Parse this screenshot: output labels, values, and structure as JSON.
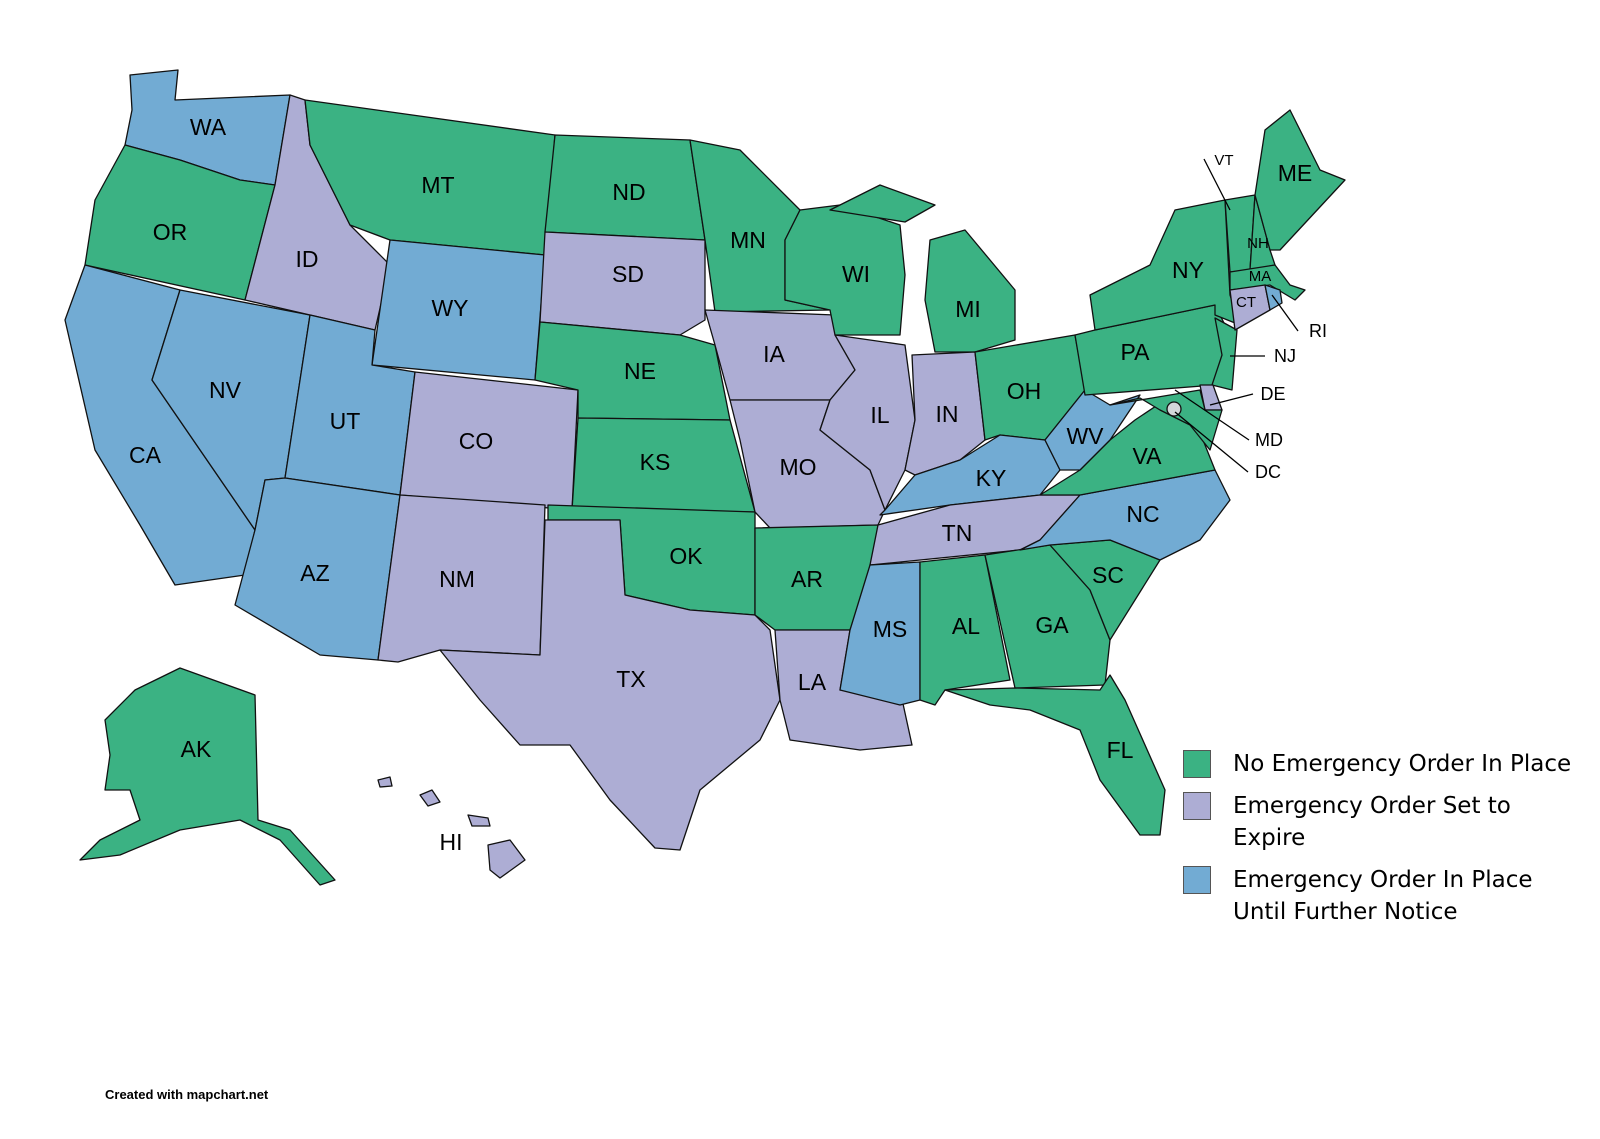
{
  "colors": {
    "no_order": "#3bb283",
    "set_to_expire": "#adadd4",
    "until_further_notice": "#72abd3",
    "no_data": "#d3d7da"
  },
  "legend": [
    {
      "key": "no_order",
      "label": "No Emergency Order In Place"
    },
    {
      "key": "set_to_expire",
      "label": "Emergency Order Set to Expire"
    },
    {
      "key": "until_further_notice",
      "label": "Emergency Order In Place Until Further Notice"
    }
  ],
  "states": [
    {
      "code": "WA",
      "category": "until_further_notice"
    },
    {
      "code": "OR",
      "category": "no_order"
    },
    {
      "code": "CA",
      "category": "until_further_notice"
    },
    {
      "code": "NV",
      "category": "until_further_notice"
    },
    {
      "code": "ID",
      "category": "set_to_expire"
    },
    {
      "code": "MT",
      "category": "no_order"
    },
    {
      "code": "WY",
      "category": "until_further_notice"
    },
    {
      "code": "UT",
      "category": "until_further_notice"
    },
    {
      "code": "AZ",
      "category": "until_further_notice"
    },
    {
      "code": "CO",
      "category": "set_to_expire"
    },
    {
      "code": "NM",
      "category": "set_to_expire"
    },
    {
      "code": "ND",
      "category": "no_order"
    },
    {
      "code": "SD",
      "category": "set_to_expire"
    },
    {
      "code": "NE",
      "category": "no_order"
    },
    {
      "code": "KS",
      "category": "no_order"
    },
    {
      "code": "OK",
      "category": "no_order"
    },
    {
      "code": "TX",
      "category": "set_to_expire"
    },
    {
      "code": "MN",
      "category": "no_order"
    },
    {
      "code": "IA",
      "category": "set_to_expire"
    },
    {
      "code": "MO",
      "category": "set_to_expire"
    },
    {
      "code": "AR",
      "category": "no_order"
    },
    {
      "code": "LA",
      "category": "set_to_expire"
    },
    {
      "code": "WI",
      "category": "no_order"
    },
    {
      "code": "IL",
      "category": "set_to_expire"
    },
    {
      "code": "MI",
      "category": "no_order"
    },
    {
      "code": "IN",
      "category": "set_to_expire"
    },
    {
      "code": "OH",
      "category": "no_order"
    },
    {
      "code": "KY",
      "category": "until_further_notice"
    },
    {
      "code": "TN",
      "category": "set_to_expire"
    },
    {
      "code": "MS",
      "category": "until_further_notice"
    },
    {
      "code": "AL",
      "category": "no_order"
    },
    {
      "code": "GA",
      "category": "no_order"
    },
    {
      "code": "FL",
      "category": "no_order"
    },
    {
      "code": "SC",
      "category": "no_order"
    },
    {
      "code": "NC",
      "category": "until_further_notice"
    },
    {
      "code": "VA",
      "category": "no_order"
    },
    {
      "code": "WV",
      "category": "until_further_notice"
    },
    {
      "code": "PA",
      "category": "no_order"
    },
    {
      "code": "NY",
      "category": "no_order"
    },
    {
      "code": "NJ",
      "category": "no_order"
    },
    {
      "code": "DE",
      "category": "set_to_expire"
    },
    {
      "code": "MD",
      "category": "no_order"
    },
    {
      "code": "VT",
      "category": "no_order"
    },
    {
      "code": "NH",
      "category": "no_order"
    },
    {
      "code": "ME",
      "category": "no_order"
    },
    {
      "code": "MA",
      "category": "no_order"
    },
    {
      "code": "CT",
      "category": "set_to_expire"
    },
    {
      "code": "RI",
      "category": "until_further_notice"
    },
    {
      "code": "AK",
      "category": "no_order"
    },
    {
      "code": "HI",
      "category": "set_to_expire"
    },
    {
      "code": "DC",
      "category": "no_data"
    }
  ],
  "credit": "Created with mapchart.net"
}
